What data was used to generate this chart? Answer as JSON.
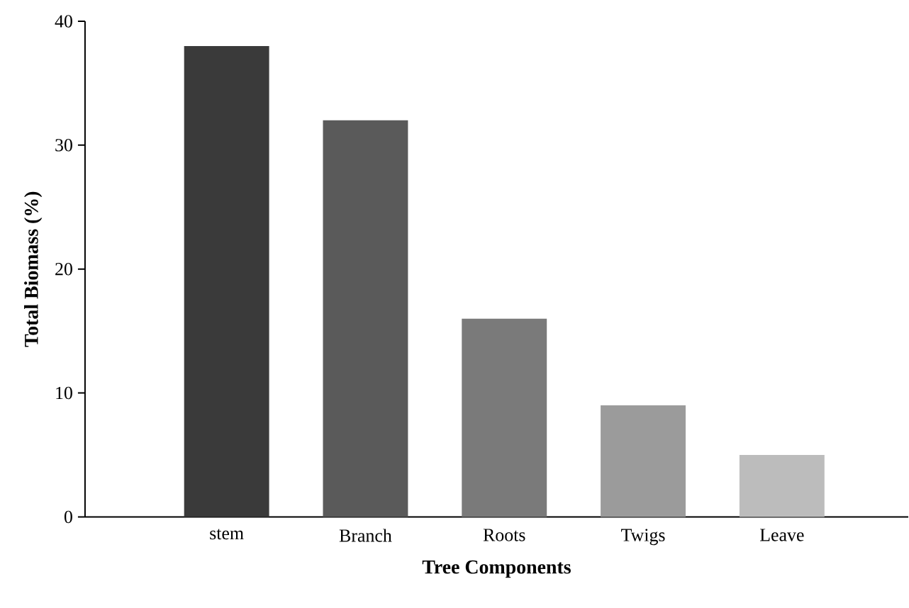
{
  "chart_data": {
    "type": "bar",
    "xlabel": "Tree Components",
    "ylabel": "Total Biomass (%)",
    "categories": [
      "stem",
      "Branch",
      "Roots",
      "Twigs",
      "Leave"
    ],
    "values": [
      38,
      32,
      16,
      9,
      5
    ],
    "colors": [
      "#3a3a3a",
      "#5a5a5a",
      "#7a7a7a",
      "#9b9b9b",
      "#bcbcbc"
    ],
    "ylim": [
      0,
      40
    ],
    "yticks": [
      0,
      10,
      20,
      30,
      40
    ],
    "grid": false
  }
}
